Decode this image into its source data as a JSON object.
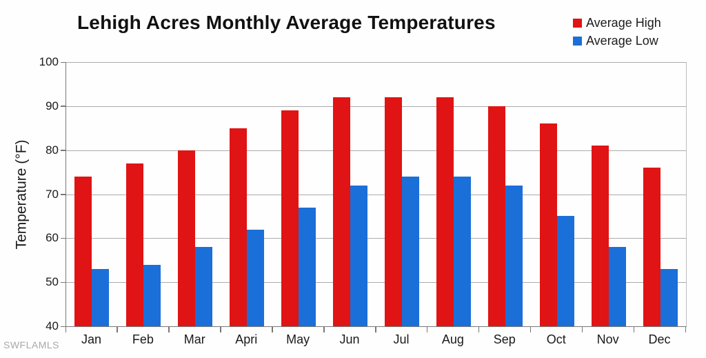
{
  "title": "Lehigh Acres Monthly Average Temperatures",
  "watermark": "SWFLAMLS",
  "legend": [
    {
      "label": "Average High",
      "color": "#e01414"
    },
    {
      "label": "Average Low",
      "color": "#1b6fd8"
    }
  ],
  "chart_data": {
    "type": "bar",
    "title": "Lehigh Acres Monthly Average Temperatures",
    "categories": [
      "Jan",
      "Feb",
      "Mar",
      "Apri",
      "May",
      "Jun",
      "Jul",
      "Aug",
      "Sep",
      "Oct",
      "Nov",
      "Dec"
    ],
    "series": [
      {
        "name": "Average High",
        "color": "#e01414",
        "values": [
          74,
          77,
          80,
          85,
          89,
          92,
          92,
          92,
          90,
          86,
          81,
          76
        ]
      },
      {
        "name": "Average Low",
        "color": "#1b6fd8",
        "values": [
          53,
          54,
          58,
          62,
          67,
          72,
          74,
          74,
          72,
          65,
          58,
          53
        ]
      }
    ],
    "xlabel": "",
    "ylabel": "Temperature (°F)",
    "ylim": [
      40,
      100
    ],
    "ytick_step": 10,
    "yticks": [
      40,
      50,
      60,
      70,
      80,
      90,
      100
    ],
    "grid": true,
    "legend_position": "top-right"
  },
  "colors": {
    "grid": "#ababab",
    "axis": "#777777",
    "text": "#1a1a1a",
    "watermark": "#a8a8a8",
    "background": "#fefefe"
  }
}
